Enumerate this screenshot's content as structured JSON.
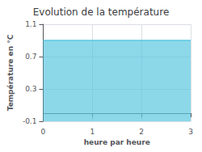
{
  "chart_data": {
    "type": "area",
    "title": "Evolution de la température",
    "xlabel": "heure par heure",
    "ylabel": "Température en °C",
    "x": [
      0,
      3
    ],
    "values": [
      0.9,
      0.9
    ],
    "color": "#5bc8e0",
    "xlim": [
      0,
      3
    ],
    "xticks": [
      0,
      1,
      2,
      3
    ],
    "ylim": [
      -0.1,
      1.1
    ],
    "yticks": [
      -0.1,
      0.3,
      0.7,
      1.1
    ],
    "grid": true
  }
}
